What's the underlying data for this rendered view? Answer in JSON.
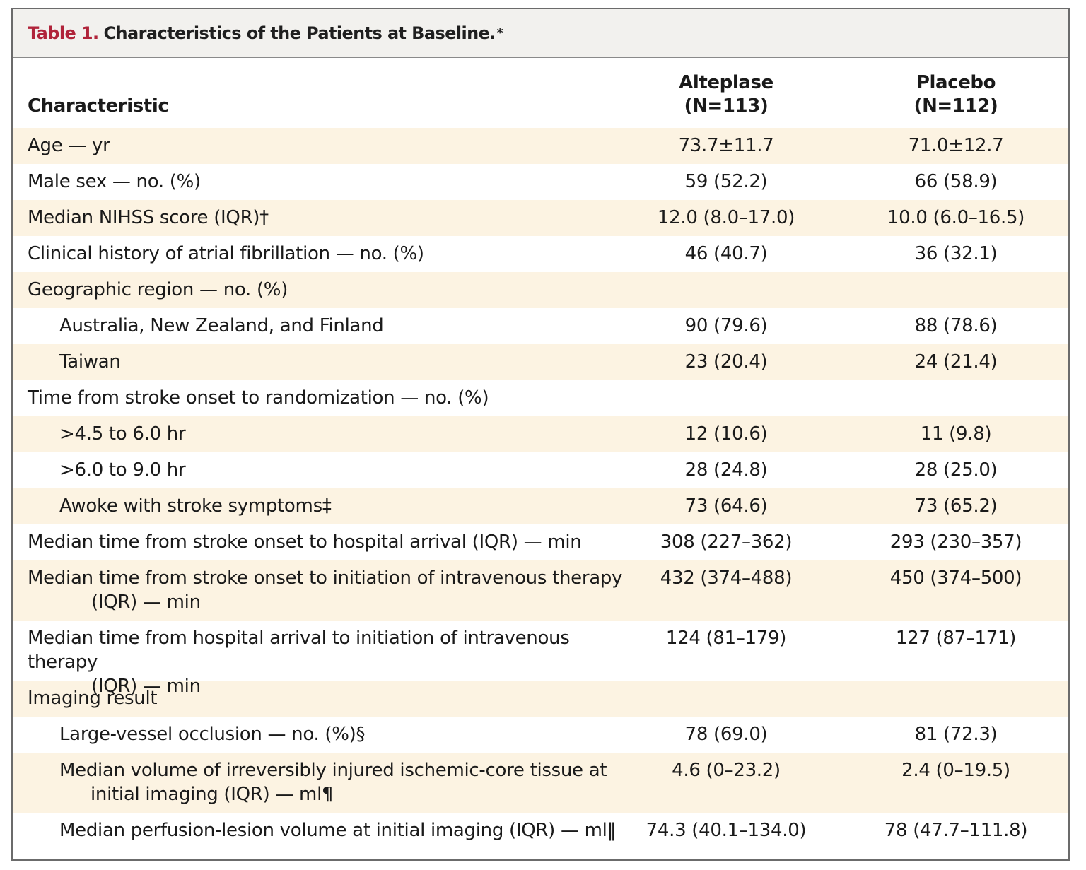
{
  "title": {
    "label": "Table 1.",
    "text": "Characteristics of the Patients at Baseline.",
    "footnote_mark": "*"
  },
  "header": {
    "characteristic": "Characteristic",
    "group1_name": "Alteplase",
    "group1_n": "(N=113)",
    "group2_name": "Placebo",
    "group2_n": "(N=112)"
  },
  "rows": [
    {
      "label": "Age — yr",
      "label2": "",
      "alteplase": "73.7±11.7",
      "placebo": "71.0±12.7"
    },
    {
      "label": "Male sex — no. (%)",
      "label2": "",
      "alteplase": "59 (52.2)",
      "placebo": "66 (58.9)"
    },
    {
      "label": "Median NIHSS score (IQR)†",
      "label2": "",
      "alteplase": "12.0 (8.0–17.0)",
      "placebo": "10.0 (6.0–16.5)"
    },
    {
      "label": "Clinical history of atrial fibrillation — no. (%)",
      "label2": "",
      "alteplase": "46 (40.7)",
      "placebo": "36 (32.1)"
    },
    {
      "label": "Geographic region — no. (%)",
      "label2": "",
      "alteplase": "",
      "placebo": ""
    },
    {
      "label": "Australia, New Zealand, and Finland",
      "label2": "",
      "alteplase": "90 (79.6)",
      "placebo": "88 (78.6)"
    },
    {
      "label": "Taiwan",
      "label2": "",
      "alteplase": "23 (20.4)",
      "placebo": "24 (21.4)"
    },
    {
      "label": "Time from stroke onset to randomization — no. (%)",
      "label2": "",
      "alteplase": "",
      "placebo": ""
    },
    {
      "label": ">4.5 to 6.0 hr",
      "label2": "",
      "alteplase": "12 (10.6)",
      "placebo": "11 (9.8)"
    },
    {
      "label": ">6.0 to 9.0 hr",
      "label2": "",
      "alteplase": "28 (24.8)",
      "placebo": "28 (25.0)"
    },
    {
      "label": "Awoke with stroke symptoms‡",
      "label2": "",
      "alteplase": "73 (64.6)",
      "placebo": "73 (65.2)"
    },
    {
      "label": "Median time from stroke onset to hospital arrival (IQR) — min",
      "label2": "",
      "alteplase": "308 (227–362)",
      "placebo": "293 (230–357)"
    },
    {
      "label": "Median time from stroke onset to initiation of intravenous therapy",
      "label2": "(IQR) — min",
      "alteplase": "432 (374–488)",
      "placebo": "450 (374–500)"
    },
    {
      "label": "Median time from hospital arrival to initiation of intravenous therapy",
      "label2": "(IQR) — min",
      "alteplase": "124 (81–179)",
      "placebo": "127 (87–171)"
    },
    {
      "label": "Imaging result",
      "label2": "",
      "alteplase": "",
      "placebo": ""
    },
    {
      "label": "Large-vessel occlusion — no. (%)§",
      "label2": "",
      "alteplase": "78 (69.0)",
      "placebo": "81 (72.3)"
    },
    {
      "label": "Median volume of irreversibly injured ischemic-core tissue at",
      "label2": "initial imaging (IQR) — ml¶",
      "alteplase": "4.6 (0–23.2)",
      "placebo": "2.4 (0–19.5)"
    },
    {
      "label": "Median perfusion-lesion volume at initial imaging (IQR) — ml‖",
      "label2": "",
      "alteplase": "74.3 (40.1–134.0)",
      "placebo": "78 (47.7–111.8)"
    }
  ]
}
